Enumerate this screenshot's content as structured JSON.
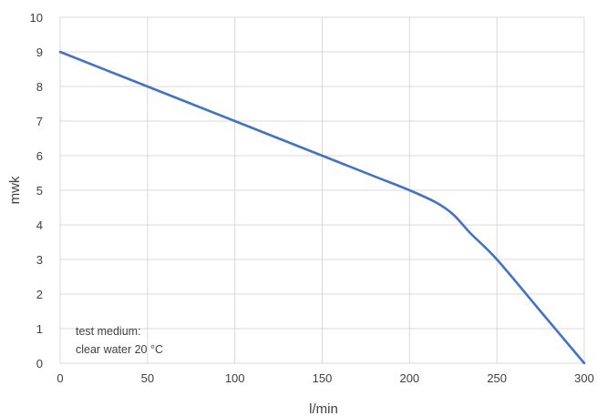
{
  "chart_data": {
    "type": "line",
    "title": "",
    "xlabel": "l/min",
    "ylabel": "mwk",
    "xlim": [
      0,
      300
    ],
    "ylim": [
      0,
      10
    ],
    "x_ticks": [
      "0",
      "50",
      "100",
      "150",
      "200",
      "250",
      "300"
    ],
    "y_ticks": [
      "0",
      "1",
      "2",
      "3",
      "4",
      "5",
      "6",
      "7",
      "8",
      "9",
      "10"
    ],
    "grid": true,
    "legend": "none",
    "series": [
      {
        "color": "#4472C4",
        "x": [
          0,
          50,
          100,
          150,
          180,
          200,
          215,
          225,
          235,
          250,
          275,
          300
        ],
        "y": [
          9,
          8,
          7,
          6,
          5.4,
          5,
          4.65,
          4.3,
          3.75,
          3.0,
          1.5,
          0
        ]
      }
    ],
    "annotation": {
      "line1": "test medium:",
      "line2": "clear water 20 °C"
    }
  }
}
